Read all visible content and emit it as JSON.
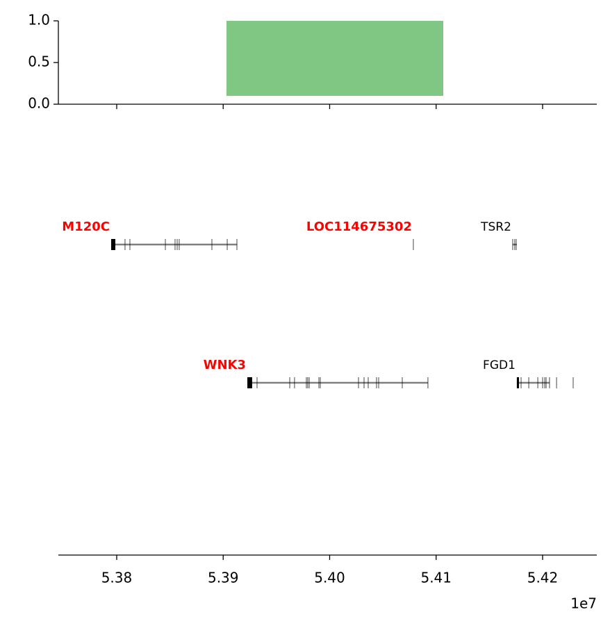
{
  "chart_data": [
    {
      "type": "span",
      "xlim": [
        5.37452,
        5.42509
      ],
      "ylim": [
        0,
        1
      ],
      "yticks": [
        {
          "value": 0,
          "label": "0.0"
        },
        {
          "value": 0.5,
          "label": "0.5"
        },
        {
          "value": 1,
          "label": "1.0"
        }
      ],
      "spans": [
        {
          "start": 5.39031,
          "end": 5.41067,
          "bottom": 0.1,
          "top": 1,
          "color": "#81c784"
        }
      ]
    },
    {
      "type": "genes",
      "xlim": [
        5.37452,
        5.42509
      ],
      "xticks": [
        5.38,
        5.39,
        {
          "value": 5.4,
          "label": "5.40"
        },
        5.41,
        5.42
      ],
      "x_offset_label": "1e7",
      "genes": [
        {
          "name": "M120C",
          "row": 0,
          "color": "red",
          "bold": true,
          "start": 5.37948,
          "end": 5.39129,
          "exons": [
            [
              5.37948,
              5.37987
            ],
            [
              5.38078,
              5.38078
            ],
            [
              5.38124,
              5.38124
            ],
            [
              5.38457,
              5.38457
            ],
            [
              5.38548,
              5.38548
            ],
            [
              5.38568,
              5.38568
            ],
            [
              5.38587,
              5.38587
            ],
            [
              5.38894,
              5.38894
            ],
            [
              5.39038,
              5.39038
            ],
            [
              5.39129,
              5.39129
            ]
          ]
        },
        {
          "name": "LOC114675302",
          "row": 0,
          "color": "red",
          "bold": true,
          "start": 5.40786,
          "end": 5.40786,
          "exons": [
            [
              5.40786,
              5.40786
            ]
          ]
        },
        {
          "name": "TSR2",
          "row": 0,
          "color": "black",
          "bold": false,
          "start": 5.41719,
          "end": 5.41758,
          "exons": [
            [
              5.41719,
              5.41725
            ],
            [
              5.41738,
              5.41738
            ],
            [
              5.41752,
              5.41758
            ]
          ]
        },
        {
          "name": "WNK3",
          "row": 1,
          "color": "red",
          "bold": true,
          "start": 5.39227,
          "end": 5.40923,
          "exons": [
            [
              5.39227,
              5.39272
            ],
            [
              5.39318,
              5.39318
            ],
            [
              5.39625,
              5.39625
            ],
            [
              5.3967,
              5.3967
            ],
            [
              5.39781,
              5.39781
            ],
            [
              5.39794,
              5.39794
            ],
            [
              5.39808,
              5.39808
            ],
            [
              5.39899,
              5.39899
            ],
            [
              5.39912,
              5.39912
            ],
            [
              5.40271,
              5.40271
            ],
            [
              5.40323,
              5.40323
            ],
            [
              5.40362,
              5.40362
            ],
            [
              5.4044,
              5.4044
            ],
            [
              5.4046,
              5.4046
            ],
            [
              5.40682,
              5.40682
            ],
            [
              5.40923,
              5.40923
            ]
          ]
        },
        {
          "name": "FGD1",
          "row": 1,
          "color": "black",
          "bold": false,
          "start": 5.41758,
          "end": 5.42065,
          "exons": [
            [
              5.41758,
              5.41778
            ],
            [
              5.41798,
              5.41798
            ],
            [
              5.4187,
              5.4187
            ],
            [
              5.41955,
              5.41955
            ],
            [
              5.42,
              5.42
            ],
            [
              5.4202,
              5.4202
            ],
            [
              5.42033,
              5.42033
            ],
            [
              5.42065,
              5.42065
            ],
            [
              5.42131,
              5.42131
            ],
            [
              5.42287,
              5.42287
            ]
          ]
        }
      ]
    }
  ]
}
